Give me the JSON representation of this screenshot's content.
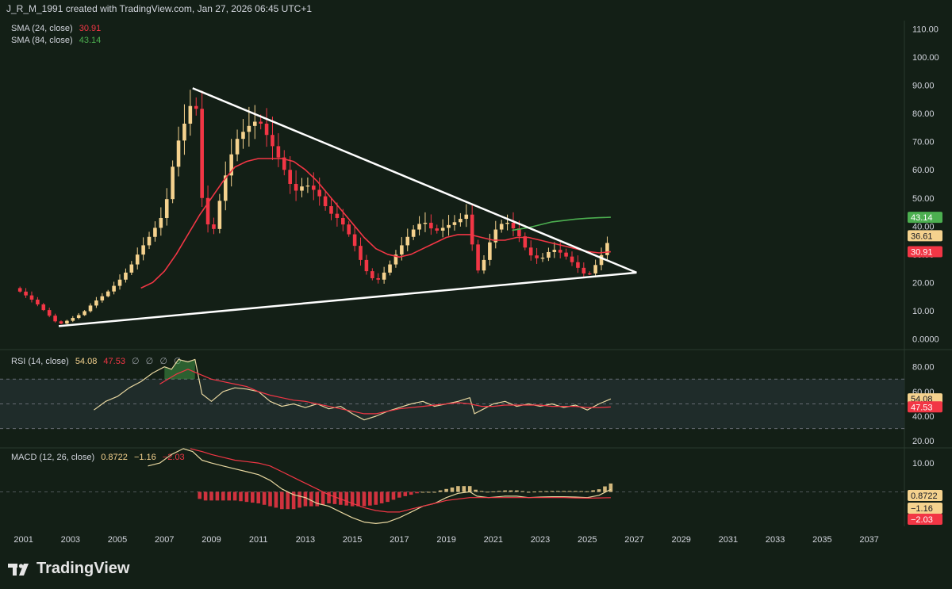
{
  "header": {
    "attribution": "J_R_M_1991 created with TradingView.com, Jan 27, 2026 06:45 UTC+1"
  },
  "brand": {
    "name": "TradingView",
    "logo_icon": "tradingview-logo-icon"
  },
  "colors": {
    "background": "#131f16",
    "candle_up": "#f5d28e",
    "candle_down": "#f23645",
    "sma24": "#f23645",
    "sma84": "#4caf50",
    "rsi": "#e8d7a0",
    "rsi_ma": "#f23645",
    "macd": "#e8d7a0",
    "signal": "#f23645",
    "trendline": "#ffffff"
  },
  "price_pane": {
    "indicators": [
      {
        "label": "SMA (24, close)",
        "value": "30.91",
        "color": "#f23645"
      },
      {
        "label": "SMA (84, close)",
        "value": "43.14",
        "color": "#4caf50"
      }
    ],
    "y_ticks": [
      "110.00",
      "100.00",
      "90.00",
      "80.00",
      "70.00",
      "60.00",
      "50.00",
      "40.00",
      "30.00",
      "20.00",
      "10.00",
      "0.0000"
    ],
    "price_badges": [
      {
        "value": "43.14",
        "price": 43.14,
        "bg": "#4caf50",
        "fg": "#ffffff"
      },
      {
        "value": "36.61",
        "price": 36.61,
        "bg": "#f5d28e",
        "fg": "#131722"
      },
      {
        "value": "30.91",
        "price": 30.91,
        "bg": "#f23645",
        "fg": "#ffffff"
      }
    ]
  },
  "rsi_pane": {
    "label": "RSI (14, close)",
    "values": [
      "54.08",
      "47.53"
    ],
    "placeholders": [
      "∅",
      "∅",
      "∅",
      "∅"
    ],
    "y_ticks": [
      "80.00",
      "60.00",
      "40.00",
      "20.00"
    ],
    "band": [
      30,
      70
    ],
    "badges": [
      {
        "value": "54.08",
        "level": 54.08,
        "bg": "#f5d28e",
        "fg": "#131722"
      },
      {
        "value": "47.53",
        "level": 47.53,
        "bg": "#f23645",
        "fg": "#ffffff"
      }
    ]
  },
  "macd_pane": {
    "label": "MACD (12, 26, close)",
    "values": [
      "0.8722",
      "−1.16",
      "−2.03"
    ],
    "y_ticks": [
      "10.00"
    ],
    "badges": [
      {
        "value": "0.8722",
        "level": 0.8722,
        "bg": "#f5d28e",
        "fg": "#131722"
      },
      {
        "value": "−1.16",
        "level": -1.16,
        "bg": "#f5d28e",
        "fg": "#131722"
      },
      {
        "value": "−2.03",
        "level": -2.03,
        "bg": "#f23645",
        "fg": "#ffffff"
      }
    ]
  },
  "x_axis": {
    "ticks": [
      "2001",
      "2003",
      "2005",
      "2007",
      "2009",
      "2011",
      "2013",
      "2015",
      "2017",
      "2019",
      "2021",
      "2023",
      "2025",
      "2027",
      "2029",
      "2031",
      "2033",
      "2035",
      "2037"
    ]
  },
  "chart_data": {
    "type": "candlestick",
    "x_range": [
      2000.0,
      2038.5
    ],
    "price_range": [
      -3,
      113
    ],
    "rsi_range": [
      15,
      92
    ],
    "macd_range": [
      -12,
      15
    ],
    "trendlines": [
      {
        "from": [
          2008.2,
          89
        ],
        "to": [
          2027.1,
          23.5
        ]
      },
      {
        "from": [
          2002.5,
          4.5
        ],
        "to": [
          2027.1,
          23.5
        ]
      }
    ],
    "price_points": [
      [
        2000.6,
        18
      ],
      [
        2001.0,
        16
      ],
      [
        2001.5,
        13
      ],
      [
        2002.0,
        9
      ],
      [
        2002.5,
        5
      ],
      [
        2003.0,
        7
      ],
      [
        2003.5,
        9
      ],
      [
        2004.0,
        13
      ],
      [
        2004.5,
        16
      ],
      [
        2005.0,
        20
      ],
      [
        2005.5,
        25
      ],
      [
        2006.0,
        32
      ],
      [
        2006.5,
        38
      ],
      [
        2007.0,
        45
      ],
      [
        2007.5,
        68
      ],
      [
        2008.0,
        80
      ],
      [
        2008.3,
        88
      ],
      [
        2008.6,
        50
      ],
      [
        2009.0,
        35
      ],
      [
        2009.5,
        55
      ],
      [
        2010.0,
        70
      ],
      [
        2010.5,
        75
      ],
      [
        2011.0,
        78
      ],
      [
        2011.5,
        70
      ],
      [
        2012.0,
        62
      ],
      [
        2012.5,
        52
      ],
      [
        2013.0,
        55
      ],
      [
        2013.5,
        52
      ],
      [
        2014.0,
        45
      ],
      [
        2014.5,
        42
      ],
      [
        2015.0,
        35
      ],
      [
        2015.5,
        25
      ],
      [
        2016.0,
        20
      ],
      [
        2016.5,
        25
      ],
      [
        2017.0,
        32
      ],
      [
        2017.5,
        38
      ],
      [
        2018.0,
        42
      ],
      [
        2018.5,
        38
      ],
      [
        2019.0,
        40
      ],
      [
        2019.5,
        42
      ],
      [
        2020.0,
        45
      ],
      [
        2020.2,
        22
      ],
      [
        2020.6,
        28
      ],
      [
        2021.0,
        38
      ],
      [
        2021.5,
        42
      ],
      [
        2022.0,
        38
      ],
      [
        2022.5,
        30
      ],
      [
        2023.0,
        28
      ],
      [
        2023.5,
        32
      ],
      [
        2024.0,
        30
      ],
      [
        2024.5,
        26
      ],
      [
        2025.0,
        22
      ],
      [
        2025.5,
        28
      ],
      [
        2026.0,
        36.6
      ]
    ],
    "sma24": [
      [
        2006.0,
        18
      ],
      [
        2006.5,
        20
      ],
      [
        2007.0,
        24
      ],
      [
        2007.5,
        30
      ],
      [
        2008.0,
        37
      ],
      [
        2008.5,
        44
      ],
      [
        2009.0,
        50
      ],
      [
        2009.5,
        56
      ],
      [
        2010.0,
        61
      ],
      [
        2010.5,
        63
      ],
      [
        2011.0,
        64
      ],
      [
        2011.5,
        64
      ],
      [
        2012.0,
        64
      ],
      [
        2012.5,
        63
      ],
      [
        2013.0,
        60
      ],
      [
        2013.5,
        56
      ],
      [
        2014.0,
        51
      ],
      [
        2014.5,
        46
      ],
      [
        2015.0,
        41
      ],
      [
        2015.5,
        36
      ],
      [
        2016.0,
        32
      ],
      [
        2016.5,
        30
      ],
      [
        2017.0,
        29
      ],
      [
        2017.5,
        30
      ],
      [
        2018.0,
        32
      ],
      [
        2018.5,
        34
      ],
      [
        2019.0,
        36
      ],
      [
        2019.5,
        37
      ],
      [
        2020.0,
        37
      ],
      [
        2020.5,
        36
      ],
      [
        2021.0,
        35
      ],
      [
        2021.5,
        35
      ],
      [
        2022.0,
        36
      ],
      [
        2022.5,
        36
      ],
      [
        2023.0,
        35
      ],
      [
        2023.5,
        34
      ],
      [
        2024.0,
        33
      ],
      [
        2024.5,
        32
      ],
      [
        2025.0,
        31
      ],
      [
        2025.5,
        30.5
      ],
      [
        2026.0,
        30.9
      ]
    ],
    "sma84": [
      [
        2021.8,
        38.5
      ],
      [
        2022.5,
        39.5
      ],
      [
        2023.0,
        40.5
      ],
      [
        2023.5,
        41.5
      ],
      [
        2024.0,
        42
      ],
      [
        2024.5,
        42.5
      ],
      [
        2025.0,
        42.8
      ],
      [
        2025.5,
        43
      ],
      [
        2026.0,
        43.14
      ]
    ],
    "rsi": [
      [
        2004.0,
        45
      ],
      [
        2004.5,
        52
      ],
      [
        2005.0,
        56
      ],
      [
        2005.5,
        63
      ],
      [
        2006.0,
        68
      ],
      [
        2006.5,
        75
      ],
      [
        2007.0,
        80
      ],
      [
        2007.3,
        78
      ],
      [
        2007.6,
        86
      ],
      [
        2008.0,
        84
      ],
      [
        2008.3,
        86
      ],
      [
        2008.6,
        58
      ],
      [
        2009.0,
        52
      ],
      [
        2009.5,
        60
      ],
      [
        2010.0,
        63
      ],
      [
        2010.5,
        62
      ],
      [
        2011.0,
        60
      ],
      [
        2011.5,
        52
      ],
      [
        2012.0,
        48
      ],
      [
        2012.5,
        50
      ],
      [
        2013.0,
        47
      ],
      [
        2013.5,
        50
      ],
      [
        2014.0,
        46
      ],
      [
        2014.5,
        48
      ],
      [
        2015.0,
        42
      ],
      [
        2015.5,
        37
      ],
      [
        2016.0,
        40
      ],
      [
        2016.5,
        44
      ],
      [
        2017.0,
        47
      ],
      [
        2017.5,
        50
      ],
      [
        2018.0,
        52
      ],
      [
        2018.5,
        48
      ],
      [
        2019.0,
        50
      ],
      [
        2019.5,
        52
      ],
      [
        2020.0,
        55
      ],
      [
        2020.2,
        42
      ],
      [
        2020.6,
        46
      ],
      [
        2021.0,
        50
      ],
      [
        2021.5,
        52
      ],
      [
        2022.0,
        48
      ],
      [
        2022.5,
        50
      ],
      [
        2023.0,
        48
      ],
      [
        2023.5,
        50
      ],
      [
        2024.0,
        47
      ],
      [
        2024.5,
        49
      ],
      [
        2025.0,
        45
      ],
      [
        2025.5,
        50
      ],
      [
        2026.0,
        54
      ]
    ],
    "rsi_ma": [
      [
        2006.8,
        66
      ],
      [
        2007.5,
        74
      ],
      [
        2008.0,
        78
      ],
      [
        2008.5,
        74
      ],
      [
        2009.0,
        70
      ],
      [
        2009.5,
        68
      ],
      [
        2010.0,
        66
      ],
      [
        2010.5,
        64
      ],
      [
        2011.0,
        60
      ],
      [
        2011.5,
        57
      ],
      [
        2012.0,
        55
      ],
      [
        2012.5,
        53
      ],
      [
        2013.0,
        52
      ],
      [
        2013.5,
        50
      ],
      [
        2014.0,
        48
      ],
      [
        2014.5,
        46
      ],
      [
        2015.0,
        44
      ],
      [
        2015.5,
        42
      ],
      [
        2016.0,
        42
      ],
      [
        2016.5,
        44
      ],
      [
        2017.0,
        46
      ],
      [
        2017.5,
        47
      ],
      [
        2018.0,
        48
      ],
      [
        2018.5,
        49
      ],
      [
        2019.0,
        50
      ],
      [
        2019.5,
        51
      ],
      [
        2020.0,
        50
      ],
      [
        2020.5,
        48
      ],
      [
        2021.0,
        48
      ],
      [
        2021.5,
        49
      ],
      [
        2022.0,
        49
      ],
      [
        2022.5,
        49
      ],
      [
        2023.0,
        49
      ],
      [
        2023.5,
        48
      ],
      [
        2024.0,
        48
      ],
      [
        2024.5,
        48
      ],
      [
        2025.0,
        47
      ],
      [
        2025.5,
        47
      ],
      [
        2026.0,
        47.5
      ]
    ],
    "macd": [
      [
        2006.3,
        9
      ],
      [
        2006.8,
        10
      ],
      [
        2007.3,
        13
      ],
      [
        2007.8,
        15
      ],
      [
        2008.2,
        14
      ],
      [
        2008.6,
        11
      ],
      [
        2009.0,
        10
      ],
      [
        2009.5,
        9
      ],
      [
        2010.0,
        8
      ],
      [
        2010.5,
        7
      ],
      [
        2011.0,
        6
      ],
      [
        2011.5,
        4
      ],
      [
        2012.0,
        1
      ],
      [
        2012.5,
        -1
      ],
      [
        2013.0,
        -2
      ],
      [
        2013.5,
        -4
      ],
      [
        2014.0,
        -5
      ],
      [
        2014.5,
        -7
      ],
      [
        2015.0,
        -9
      ],
      [
        2015.5,
        -10.5
      ],
      [
        2016.0,
        -11
      ],
      [
        2016.5,
        -10.5
      ],
      [
        2017.0,
        -9
      ],
      [
        2017.5,
        -7
      ],
      [
        2018.0,
        -5
      ],
      [
        2018.5,
        -4
      ],
      [
        2019.0,
        -2
      ],
      [
        2019.5,
        -0.5
      ],
      [
        2020.0,
        0
      ],
      [
        2020.3,
        -1.5
      ],
      [
        2020.8,
        -2
      ],
      [
        2021.5,
        -1.5
      ],
      [
        2022.0,
        -1.5
      ],
      [
        2022.5,
        -2
      ],
      [
        2023.0,
        -1.8
      ],
      [
        2023.5,
        -1.7
      ],
      [
        2024.0,
        -1.7
      ],
      [
        2024.5,
        -1.8
      ],
      [
        2025.0,
        -2
      ],
      [
        2025.5,
        -1.2
      ],
      [
        2026.0,
        0.87
      ]
    ],
    "signal": [
      [
        2008.1,
        15
      ],
      [
        2008.6,
        14
      ],
      [
        2009.0,
        13
      ],
      [
        2009.5,
        12
      ],
      [
        2010.0,
        11
      ],
      [
        2010.5,
        10.5
      ],
      [
        2011.0,
        10
      ],
      [
        2011.5,
        9
      ],
      [
        2012.0,
        7
      ],
      [
        2012.5,
        5
      ],
      [
        2013.0,
        3
      ],
      [
        2013.5,
        1
      ],
      [
        2014.0,
        -1
      ],
      [
        2014.5,
        -2.5
      ],
      [
        2015.0,
        -4
      ],
      [
        2015.5,
        -5.5
      ],
      [
        2016.0,
        -6.5
      ],
      [
        2016.5,
        -7
      ],
      [
        2017.0,
        -7
      ],
      [
        2017.5,
        -6
      ],
      [
        2018.0,
        -5
      ],
      [
        2018.5,
        -4
      ],
      [
        2019.0,
        -3
      ],
      [
        2019.5,
        -2.5
      ],
      [
        2020.0,
        -2
      ],
      [
        2020.5,
        -2
      ],
      [
        2021.0,
        -2
      ],
      [
        2021.5,
        -2
      ],
      [
        2022.0,
        -2
      ],
      [
        2022.5,
        -2
      ],
      [
        2023.0,
        -2
      ],
      [
        2023.5,
        -2
      ],
      [
        2024.0,
        -2
      ],
      [
        2024.5,
        -2.1
      ],
      [
        2025.0,
        -2.2
      ],
      [
        2025.5,
        -2.1
      ],
      [
        2026.0,
        -2.03
      ]
    ]
  }
}
